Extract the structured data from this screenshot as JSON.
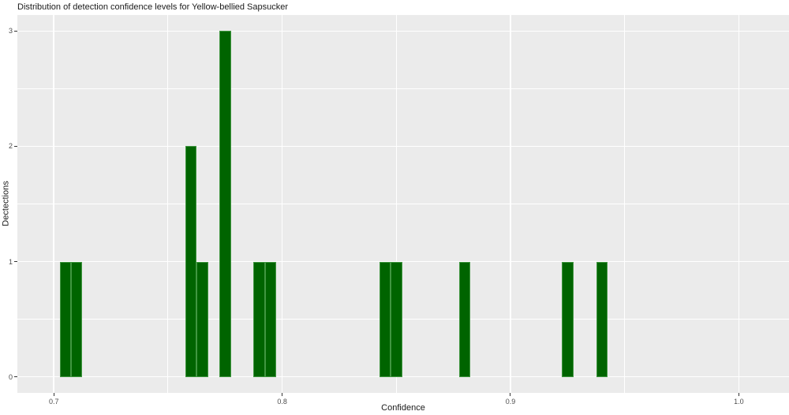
{
  "chart_data": {
    "type": "bar",
    "subtype": "histogram",
    "title": "Distribution of detection confidence levels for Yellow-bellied Sapsucker",
    "xlabel": "Confidence",
    "ylabel": "Dectections",
    "bin_width": 0.005,
    "bins": [
      {
        "center": 0.705,
        "count": 1
      },
      {
        "center": 0.71,
        "count": 1
      },
      {
        "center": 0.76,
        "count": 2
      },
      {
        "center": 0.765,
        "count": 1
      },
      {
        "center": 0.775,
        "count": 3
      },
      {
        "center": 0.79,
        "count": 1
      },
      {
        "center": 0.795,
        "count": 1
      },
      {
        "center": 0.845,
        "count": 1
      },
      {
        "center": 0.85,
        "count": 1
      },
      {
        "center": 0.88,
        "count": 1
      },
      {
        "center": 0.925,
        "count": 1
      },
      {
        "center": 0.94,
        "count": 1
      }
    ],
    "x_ticks": [
      {
        "value": 0.7,
        "label": "0.7"
      },
      {
        "value": 0.8,
        "label": "0.8"
      },
      {
        "value": 0.9,
        "label": "0.9"
      },
      {
        "value": 1.0,
        "label": "1.0"
      }
    ],
    "y_ticks": [
      {
        "value": 0,
        "label": "0"
      },
      {
        "value": 1,
        "label": "1"
      },
      {
        "value": 2,
        "label": "2"
      },
      {
        "value": 3,
        "label": "3"
      }
    ],
    "x_minor": [
      0.75,
      0.85,
      0.95
    ],
    "y_minor": [
      0.5,
      1.5,
      2.5
    ],
    "xlim": [
      0.684,
      1.022
    ],
    "ylim": [
      -0.14,
      3.14
    ],
    "grid": true,
    "legend": "none",
    "colors": {
      "bar_fill": "#006400",
      "bar_border": "#419641",
      "panel_bg": "#EBEBEB",
      "grid_major": "#FFFFFF",
      "grid_minor": "#FFFFFF",
      "tick_mark": "#333333",
      "tick_label": "#4D4D4D",
      "axis_title": "#1A1A1A",
      "title": "#1A1A1A",
      "figure_bg": "#FFFFFF"
    }
  }
}
